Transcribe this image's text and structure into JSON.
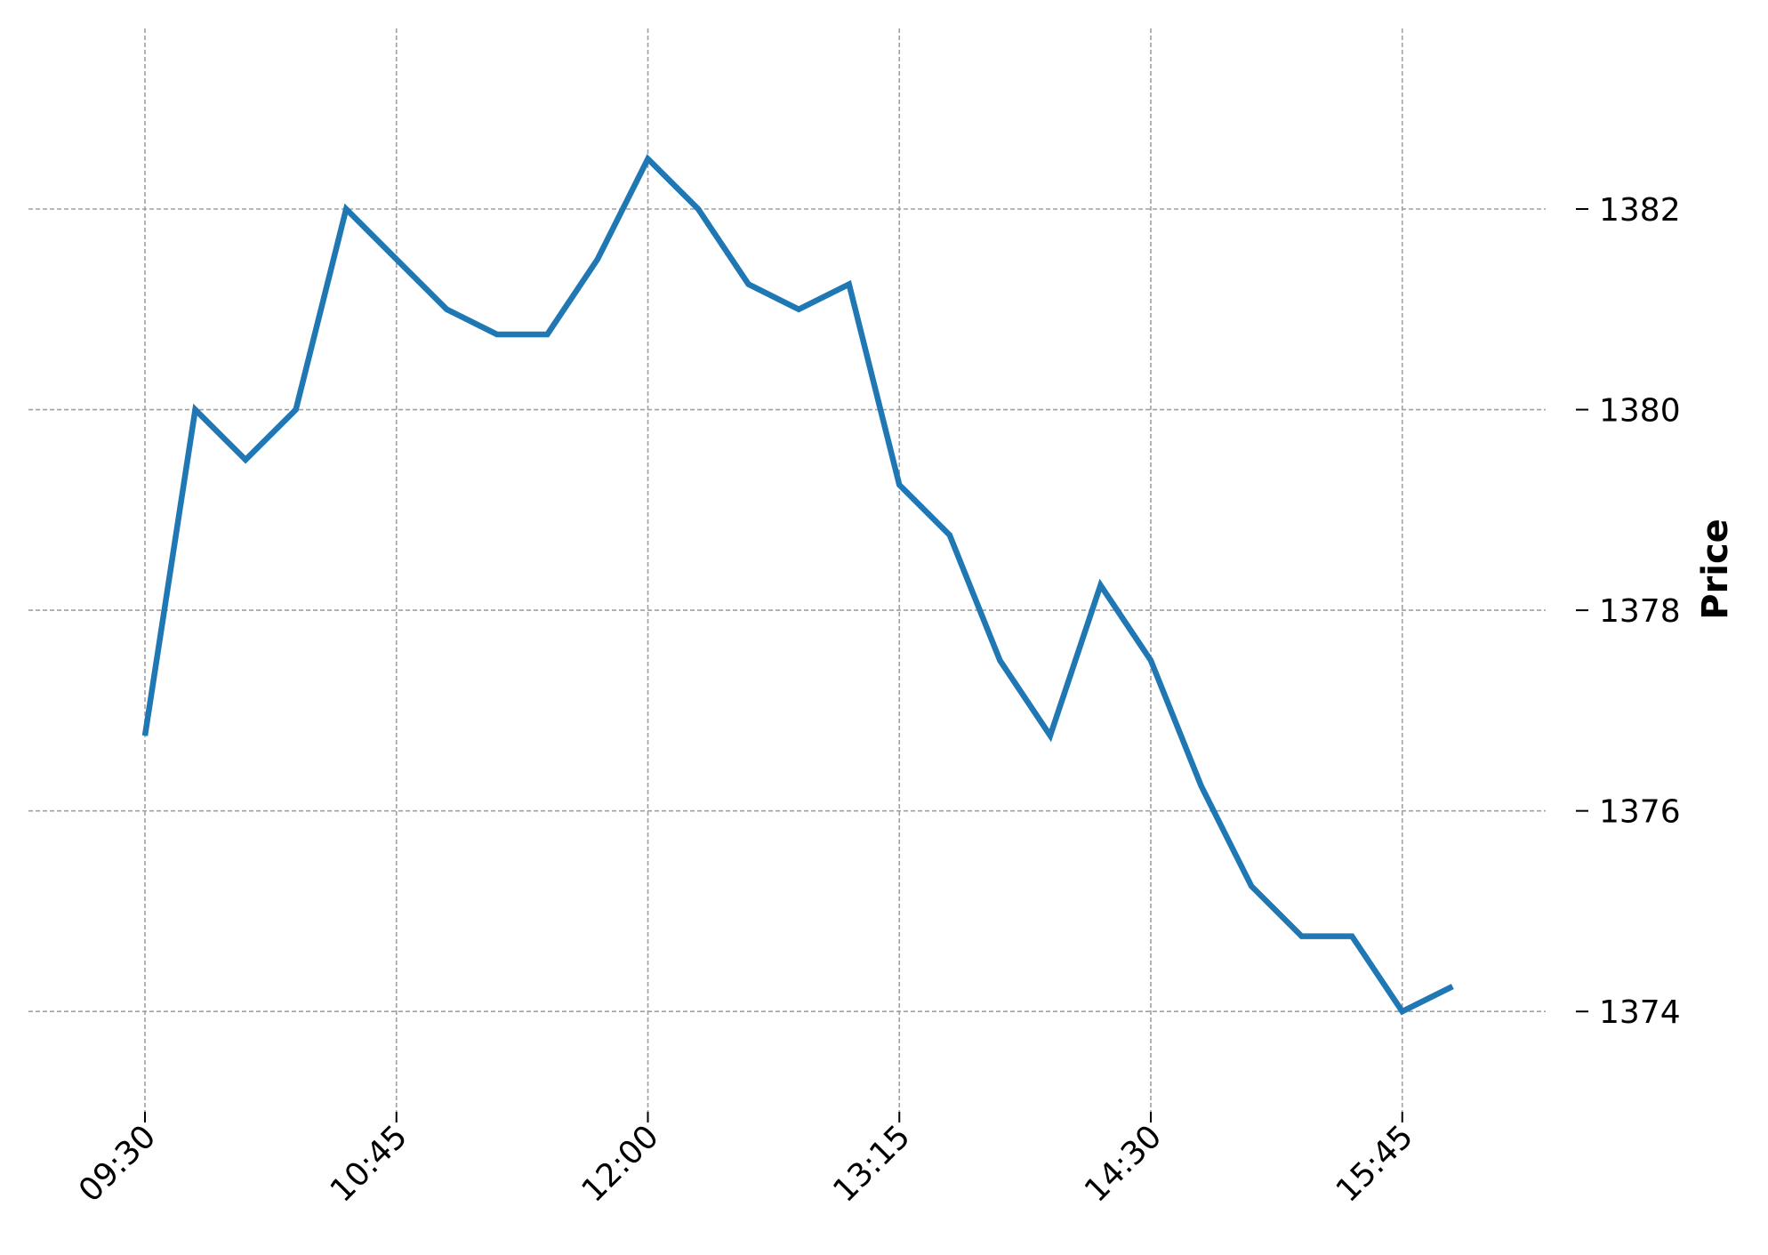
{
  "chart_data": {
    "type": "line",
    "title": "",
    "xlabel": "",
    "ylabel": "Price",
    "x_tick_labels": [
      "09:30",
      "10:45",
      "12:00",
      "13:15",
      "14:30",
      "15:45"
    ],
    "y_ticks": [
      1374,
      1376,
      1378,
      1380,
      1382
    ],
    "ylim": [
      1373.0,
      1383.8
    ],
    "grid": true,
    "legend": "none",
    "line_color": "#1f77b4",
    "x": [
      "09:30",
      "09:45",
      "10:00",
      "10:15",
      "10:30",
      "10:45",
      "11:00",
      "11:15",
      "11:30",
      "11:45",
      "12:00",
      "12:15",
      "12:30",
      "12:45",
      "13:00",
      "13:15",
      "13:30",
      "13:45",
      "14:00",
      "14:15",
      "14:30",
      "14:45",
      "15:00",
      "15:15",
      "15:30",
      "15:45",
      "16:00"
    ],
    "series": [
      {
        "values": [
          1376.75,
          1380.0,
          1379.5,
          1380.0,
          1382.0,
          1381.5,
          1381.0,
          1380.75,
          1380.75,
          1381.5,
          1382.5,
          1382.0,
          1381.25,
          1381.0,
          1381.25,
          1379.25,
          1378.75,
          1377.5,
          1376.75,
          1378.25,
          1377.5,
          1376.25,
          1375.25,
          1374.75,
          1374.75,
          1374.0,
          1374.25
        ]
      }
    ]
  }
}
